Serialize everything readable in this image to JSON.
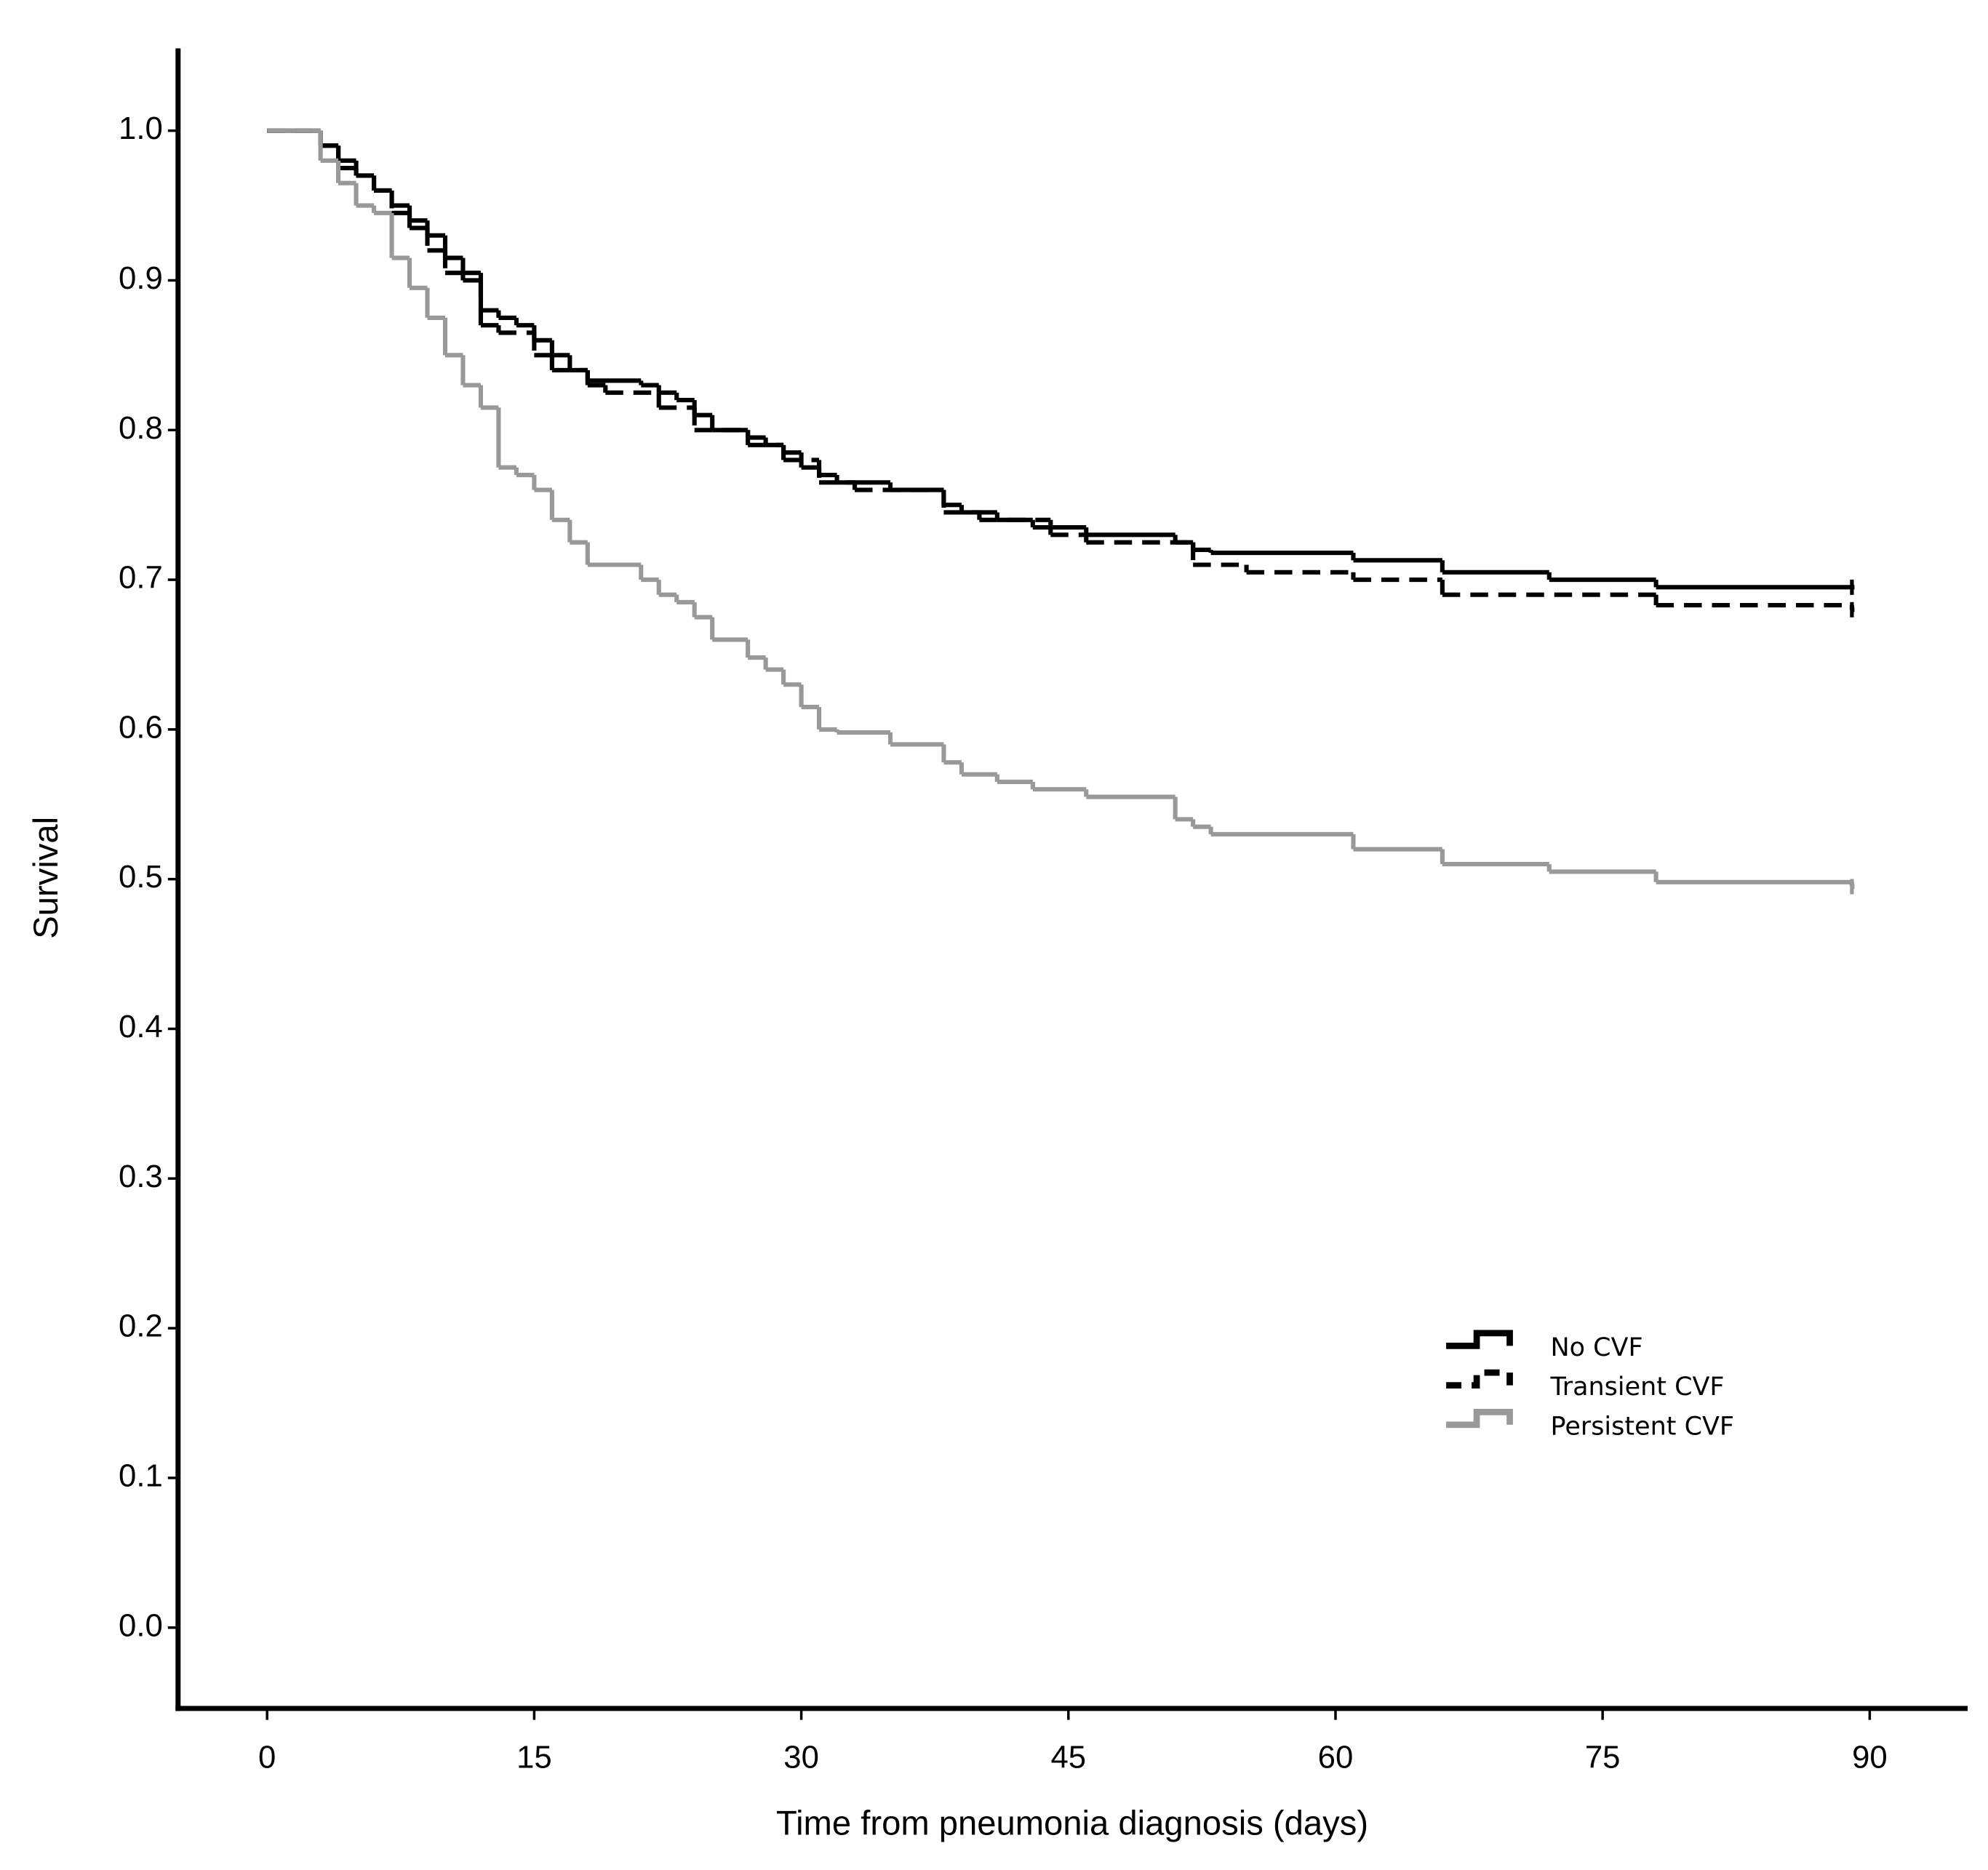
{
  "chart_data": {
    "type": "step",
    "xlabel": "Time from pneumonia diagnosis (days)",
    "ylabel": "Survival",
    "xlim": [
      -5,
      95.5
    ],
    "ylim": [
      -0.054,
      1.055
    ],
    "xticks": [
      0,
      15,
      30,
      45,
      60,
      75,
      90
    ],
    "yticks": [
      {
        "value": 0,
        "label": "0.0"
      },
      0.1,
      0.2,
      0.3,
      0.4,
      0.5,
      0.6,
      0.7,
      0.8,
      0.9,
      {
        "value": 1,
        "label": "1.0"
      }
    ],
    "legend": "lower right",
    "series": [
      {
        "name": "No CVF",
        "color": "#000000",
        "dash": "solid",
        "x": [
          0,
          3,
          4,
          5,
          6,
          7,
          8,
          9,
          10,
          11,
          12,
          13,
          14,
          15,
          16,
          17,
          18,
          21,
          22,
          23,
          24,
          25,
          27,
          28,
          29,
          30,
          31,
          32,
          35,
          38,
          39,
          41,
          43,
          46,
          51,
          52,
          53,
          61,
          66,
          72,
          78,
          89
        ],
        "values": [
          1.0,
          0.99,
          0.98,
          0.97,
          0.96,
          0.95,
          0.94,
          0.93,
          0.915,
          0.905,
          0.88,
          0.875,
          0.87,
          0.86,
          0.85,
          0.84,
          0.833,
          0.83,
          0.825,
          0.82,
          0.81,
          0.8,
          0.795,
          0.79,
          0.785,
          0.775,
          0.77,
          0.765,
          0.76,
          0.75,
          0.745,
          0.74,
          0.735,
          0.73,
          0.725,
          0.72,
          0.718,
          0.713,
          0.705,
          0.7,
          0.695,
          0.695
        ]
      },
      {
        "name": "Transient CVF",
        "color": "#000000",
        "dash": "dashed",
        "x": [
          0,
          3,
          4,
          5,
          6,
          7,
          8,
          9,
          10,
          11,
          12,
          13,
          15,
          16,
          18,
          19,
          22,
          24,
          27,
          29,
          31,
          33,
          38,
          40,
          44,
          46,
          52,
          55,
          61,
          66,
          78,
          89
        ],
        "values": [
          1.0,
          0.99,
          0.975,
          0.97,
          0.96,
          0.945,
          0.935,
          0.92,
          0.905,
          0.9,
          0.87,
          0.865,
          0.85,
          0.84,
          0.83,
          0.825,
          0.815,
          0.8,
          0.79,
          0.78,
          0.765,
          0.76,
          0.745,
          0.74,
          0.73,
          0.725,
          0.71,
          0.705,
          0.7,
          0.69,
          0.683,
          0.68
        ]
      },
      {
        "name": "Persistent CVF",
        "color": "#999999",
        "dash": "solid",
        "x": [
          0,
          3,
          4,
          5,
          6,
          7,
          8,
          9,
          10,
          11,
          12,
          13,
          14,
          15,
          16,
          17,
          18,
          21,
          22,
          23,
          24,
          25,
          27,
          28,
          29,
          30,
          31,
          32,
          35,
          38,
          39,
          41,
          43,
          46,
          51,
          52,
          53,
          61,
          66,
          72,
          78,
          89
        ],
        "values": [
          1.0,
          0.98,
          0.965,
          0.95,
          0.945,
          0.915,
          0.895,
          0.875,
          0.85,
          0.83,
          0.815,
          0.775,
          0.77,
          0.76,
          0.74,
          0.725,
          0.71,
          0.7,
          0.69,
          0.685,
          0.675,
          0.66,
          0.648,
          0.64,
          0.63,
          0.615,
          0.6,
          0.598,
          0.59,
          0.578,
          0.57,
          0.565,
          0.56,
          0.555,
          0.54,
          0.535,
          0.53,
          0.52,
          0.51,
          0.505,
          0.498,
          0.495
        ]
      }
    ]
  }
}
